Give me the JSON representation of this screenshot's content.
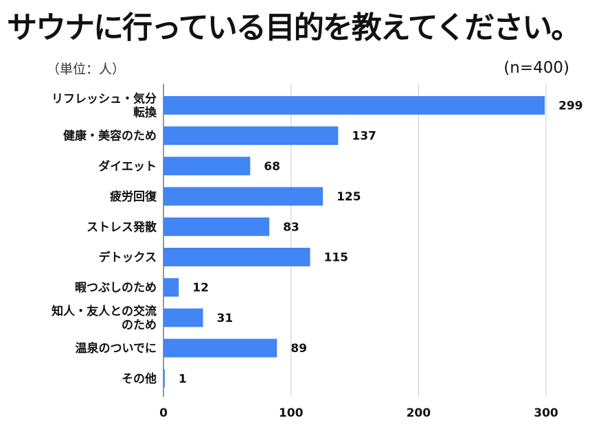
{
  "title": "サウナに行っている目的を教えてください。",
  "unit_label": "（単位：人）",
  "sample_label": "(n=400)",
  "chart_data": {
    "type": "bar",
    "orientation": "horizontal",
    "categories": [
      "リフレッシュ・気分転換",
      "健康・美容のため",
      "ダイエット",
      "疲労回復",
      "ストレス発散",
      "デトックス",
      "暇つぶしのため",
      "知人・友人との交流のため",
      "温泉のついでに",
      "その他"
    ],
    "category_lines": [
      [
        "リフレッシュ・気分",
        "転換"
      ],
      [
        "健康・美容のため"
      ],
      [
        "ダイエット"
      ],
      [
        "疲労回復"
      ],
      [
        "ストレス発散"
      ],
      [
        "デトックス"
      ],
      [
        "暇つぶしのため"
      ],
      [
        "知人・友人との交流",
        "のため"
      ],
      [
        "温泉のついでに"
      ],
      [
        "その他"
      ]
    ],
    "values": [
      299,
      137,
      68,
      125,
      83,
      115,
      12,
      31,
      89,
      1
    ],
    "xlim": [
      0,
      300
    ],
    "xticks": [
      0,
      100,
      200,
      300
    ],
    "grid": true,
    "bar_color": "#4285f4",
    "grid_color": "#cccccc"
  }
}
